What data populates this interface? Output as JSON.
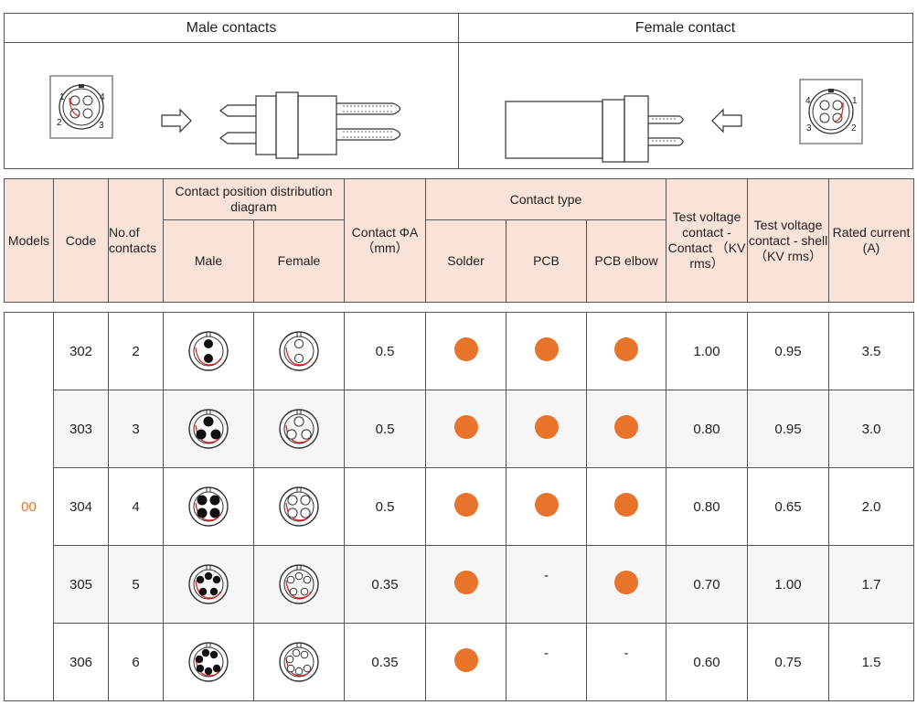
{
  "diagram": {
    "male_title": "Male contacts",
    "female_title": "Female contact",
    "male_pin_labels": [
      "1",
      "2",
      "3",
      "4"
    ],
    "female_pin_labels": [
      "1",
      "2",
      "3",
      "4"
    ]
  },
  "table": {
    "headers": {
      "models": "Models",
      "code": "Code",
      "contacts": "No.of contacts",
      "diagram_group": "Contact position distribution diagram",
      "male": "Male",
      "female": "Female",
      "contact_dia": "Contact ΦA （mm）",
      "contact_type": "Contact type",
      "solder": "Solder",
      "pcb": "PCB",
      "pcb_elbow": "PCB elbow",
      "tv_contact": "Test voltage contact - Contact （KV rms）",
      "tv_shell": "Test voltage contact - shell （KV rms）",
      "rated": "Rated current (A)"
    },
    "model": "00",
    "rows": [
      {
        "code": "302",
        "contacts": "2",
        "dia": "0.5",
        "solder": true,
        "pcb": true,
        "pcb_elbow": true,
        "tv_contact": "1.00",
        "tv_shell": "0.95",
        "rated": "3.5"
      },
      {
        "code": "303",
        "contacts": "3",
        "dia": "0.5",
        "solder": true,
        "pcb": true,
        "pcb_elbow": true,
        "tv_contact": "0.80",
        "tv_shell": "0.95",
        "rated": "3.0"
      },
      {
        "code": "304",
        "contacts": "4",
        "dia": "0.5",
        "solder": true,
        "pcb": true,
        "pcb_elbow": true,
        "tv_contact": "0.80",
        "tv_shell": "0.65",
        "rated": "2.0"
      },
      {
        "code": "305",
        "contacts": "5",
        "dia": "0.35",
        "solder": true,
        "pcb": false,
        "pcb_elbow": true,
        "tv_contact": "0.70",
        "tv_shell": "1.00",
        "rated": "1.7"
      },
      {
        "code": "306",
        "contacts": "6",
        "dia": "0.35",
        "solder": true,
        "pcb": false,
        "pcb_elbow": false,
        "tv_contact": "0.60",
        "tv_shell": "0.75",
        "rated": "1.5"
      }
    ],
    "not_available": "-",
    "colors": {
      "accent": "#e8732a",
      "header_bg": "#f9e2d7",
      "alt_row_bg": "#f6f6f6",
      "red_line": "#d8221f"
    }
  }
}
